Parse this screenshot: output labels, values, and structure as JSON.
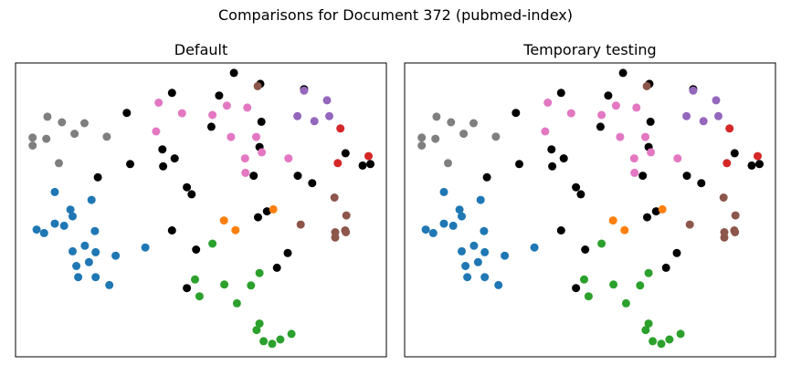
{
  "figure": {
    "title": "Comparisons for Document 372 (pubmed-index)"
  },
  "colors": {
    "black": "#000000",
    "gray": "#7f7f7f",
    "blue": "#1f77b4",
    "orange": "#ff7f0e",
    "green": "#2ca02c",
    "red": "#d62728",
    "purple": "#9467bd",
    "brown": "#8c564b",
    "pink": "#e377c2"
  },
  "chart_data": [
    {
      "type": "scatter",
      "title": "Default",
      "xlim": [
        0,
        100
      ],
      "ylim": [
        0,
        100
      ],
      "grid": false,
      "axes_ticks": false,
      "points": [
        {
          "x": 58.9,
          "y": 96.6,
          "c": "black"
        },
        {
          "x": 66.0,
          "y": 92.9,
          "c": "black"
        },
        {
          "x": 77.8,
          "y": 91.1,
          "c": "black"
        },
        {
          "x": 42.2,
          "y": 89.8,
          "c": "black"
        },
        {
          "x": 54.9,
          "y": 88.9,
          "c": "black"
        },
        {
          "x": 30.0,
          "y": 83.0,
          "c": "black"
        },
        {
          "x": 66.3,
          "y": 80.0,
          "c": "black"
        },
        {
          "x": 52.8,
          "y": 78.3,
          "c": "black"
        },
        {
          "x": 65.8,
          "y": 71.4,
          "c": "black"
        },
        {
          "x": 39.6,
          "y": 70.6,
          "c": "black"
        },
        {
          "x": 42.9,
          "y": 67.5,
          "c": "black"
        },
        {
          "x": 89.0,
          "y": 69.3,
          "c": "black"
        },
        {
          "x": 30.9,
          "y": 65.6,
          "c": "black"
        },
        {
          "x": 39.8,
          "y": 64.8,
          "c": "black"
        },
        {
          "x": 93.6,
          "y": 65.1,
          "c": "black"
        },
        {
          "x": 95.7,
          "y": 65.6,
          "c": "black"
        },
        {
          "x": 22.2,
          "y": 61.1,
          "c": "black"
        },
        {
          "x": 64.2,
          "y": 61.6,
          "c": "black"
        },
        {
          "x": 76.1,
          "y": 61.6,
          "c": "black"
        },
        {
          "x": 80.0,
          "y": 59.1,
          "c": "black"
        },
        {
          "x": 46.2,
          "y": 57.7,
          "c": "black"
        },
        {
          "x": 47.5,
          "y": 55.3,
          "c": "black"
        },
        {
          "x": 67.8,
          "y": 49.5,
          "c": "black"
        },
        {
          "x": 65.4,
          "y": 47.5,
          "c": "black"
        },
        {
          "x": 42.2,
          "y": 43.0,
          "c": "black"
        },
        {
          "x": 48.7,
          "y": 36.5,
          "c": "black"
        },
        {
          "x": 73.4,
          "y": 35.3,
          "c": "black"
        },
        {
          "x": 70.5,
          "y": 30.3,
          "c": "black"
        },
        {
          "x": 46.2,
          "y": 23.4,
          "c": "black"
        },
        {
          "x": 4.6,
          "y": 74.6,
          "c": "gray"
        },
        {
          "x": 8.6,
          "y": 81.7,
          "c": "gray"
        },
        {
          "x": 12.5,
          "y": 79.8,
          "c": "gray"
        },
        {
          "x": 18.6,
          "y": 79.5,
          "c": "gray"
        },
        {
          "x": 15.9,
          "y": 75.9,
          "c": "gray"
        },
        {
          "x": 24.6,
          "y": 74.9,
          "c": "gray"
        },
        {
          "x": 4.6,
          "y": 71.9,
          "c": "gray"
        },
        {
          "x": 8.3,
          "y": 74.2,
          "c": "gray"
        },
        {
          "x": 11.7,
          "y": 65.9,
          "c": "gray"
        },
        {
          "x": 10.6,
          "y": 56.1,
          "c": "blue"
        },
        {
          "x": 20.5,
          "y": 53.4,
          "c": "blue"
        },
        {
          "x": 14.8,
          "y": 50.1,
          "c": "blue"
        },
        {
          "x": 15.4,
          "y": 47.8,
          "c": "blue"
        },
        {
          "x": 10.6,
          "y": 45.3,
          "c": "blue"
        },
        {
          "x": 13.1,
          "y": 44.6,
          "c": "blue"
        },
        {
          "x": 5.7,
          "y": 43.3,
          "c": "blue"
        },
        {
          "x": 7.7,
          "y": 42.1,
          "c": "blue"
        },
        {
          "x": 21.4,
          "y": 42.8,
          "c": "blue"
        },
        {
          "x": 18.7,
          "y": 37.8,
          "c": "blue"
        },
        {
          "x": 15.4,
          "y": 35.9,
          "c": "blue"
        },
        {
          "x": 21.6,
          "y": 35.6,
          "c": "blue"
        },
        {
          "x": 27.0,
          "y": 34.4,
          "c": "blue"
        },
        {
          "x": 19.8,
          "y": 32.2,
          "c": "blue"
        },
        {
          "x": 16.4,
          "y": 30.9,
          "c": "blue"
        },
        {
          "x": 16.9,
          "y": 27.1,
          "c": "blue"
        },
        {
          "x": 21.6,
          "y": 27.1,
          "c": "blue"
        },
        {
          "x": 25.3,
          "y": 24.4,
          "c": "blue"
        },
        {
          "x": 35.0,
          "y": 37.2,
          "c": "blue"
        },
        {
          "x": 56.2,
          "y": 46.4,
          "c": "orange"
        },
        {
          "x": 59.3,
          "y": 43.1,
          "c": "orange"
        },
        {
          "x": 69.5,
          "y": 50.2,
          "c": "orange"
        },
        {
          "x": 53.1,
          "y": 38.5,
          "c": "green"
        },
        {
          "x": 65.8,
          "y": 28.5,
          "c": "green"
        },
        {
          "x": 48.4,
          "y": 26.3,
          "c": "green"
        },
        {
          "x": 56.3,
          "y": 24.6,
          "c": "green"
        },
        {
          "x": 63.5,
          "y": 24.3,
          "c": "green"
        },
        {
          "x": 49.6,
          "y": 20.6,
          "c": "green"
        },
        {
          "x": 59.7,
          "y": 18.2,
          "c": "green"
        },
        {
          "x": 65.8,
          "y": 11.3,
          "c": "green"
        },
        {
          "x": 65.0,
          "y": 9.1,
          "c": "green"
        },
        {
          "x": 74.4,
          "y": 7.8,
          "c": "green"
        },
        {
          "x": 71.4,
          "y": 5.9,
          "c": "green"
        },
        {
          "x": 66.9,
          "y": 5.3,
          "c": "green"
        },
        {
          "x": 69.2,
          "y": 4.4,
          "c": "green"
        },
        {
          "x": 87.6,
          "y": 77.7,
          "c": "red"
        },
        {
          "x": 86.9,
          "y": 65.9,
          "c": "red"
        },
        {
          "x": 95.2,
          "y": 68.3,
          "c": "red"
        },
        {
          "x": 77.8,
          "y": 90.6,
          "c": "purple"
        },
        {
          "x": 84.0,
          "y": 87.3,
          "c": "purple"
        },
        {
          "x": 76.0,
          "y": 81.9,
          "c": "purple"
        },
        {
          "x": 80.6,
          "y": 80.2,
          "c": "purple"
        },
        {
          "x": 84.6,
          "y": 81.9,
          "c": "purple"
        },
        {
          "x": 65.3,
          "y": 92.1,
          "c": "brown"
        },
        {
          "x": 86.0,
          "y": 54.2,
          "c": "brown"
        },
        {
          "x": 89.2,
          "y": 48.1,
          "c": "brown"
        },
        {
          "x": 76.9,
          "y": 45.0,
          "c": "brown"
        },
        {
          "x": 86.2,
          "y": 42.4,
          "c": "brown"
        },
        {
          "x": 86.2,
          "y": 40.6,
          "c": "brown"
        },
        {
          "x": 88.9,
          "y": 43.0,
          "c": "brown"
        },
        {
          "x": 89.1,
          "y": 42.4,
          "c": "brown"
        },
        {
          "x": 38.6,
          "y": 86.5,
          "c": "pink"
        },
        {
          "x": 44.9,
          "y": 82.9,
          "c": "pink"
        },
        {
          "x": 57.0,
          "y": 85.5,
          "c": "pink"
        },
        {
          "x": 62.5,
          "y": 84.8,
          "c": "pink"
        },
        {
          "x": 53.1,
          "y": 82.3,
          "c": "pink"
        },
        {
          "x": 37.9,
          "y": 76.7,
          "c": "pink"
        },
        {
          "x": 58.1,
          "y": 74.8,
          "c": "pink"
        },
        {
          "x": 64.9,
          "y": 74.8,
          "c": "pink"
        },
        {
          "x": 66.4,
          "y": 69.6,
          "c": "pink"
        },
        {
          "x": 61.9,
          "y": 67.5,
          "c": "pink"
        },
        {
          "x": 73.6,
          "y": 67.5,
          "c": "pink"
        },
        {
          "x": 62.0,
          "y": 62.6,
          "c": "pink"
        }
      ]
    },
    {
      "type": "scatter",
      "title": "Temporary testing",
      "xlim": [
        0,
        100
      ],
      "ylim": [
        0,
        100
      ],
      "grid": false,
      "axes_ticks": false,
      "points": [
        {
          "x": 58.9,
          "y": 96.6,
          "c": "black"
        },
        {
          "x": 66.0,
          "y": 92.9,
          "c": "black"
        },
        {
          "x": 77.8,
          "y": 91.1,
          "c": "black"
        },
        {
          "x": 42.2,
          "y": 89.8,
          "c": "black"
        },
        {
          "x": 54.9,
          "y": 88.9,
          "c": "black"
        },
        {
          "x": 30.0,
          "y": 83.0,
          "c": "black"
        },
        {
          "x": 66.3,
          "y": 80.0,
          "c": "black"
        },
        {
          "x": 52.8,
          "y": 78.3,
          "c": "black"
        },
        {
          "x": 65.8,
          "y": 71.4,
          "c": "black"
        },
        {
          "x": 39.6,
          "y": 70.6,
          "c": "black"
        },
        {
          "x": 42.9,
          "y": 67.5,
          "c": "black"
        },
        {
          "x": 89.0,
          "y": 69.3,
          "c": "black"
        },
        {
          "x": 30.9,
          "y": 65.6,
          "c": "black"
        },
        {
          "x": 39.8,
          "y": 64.8,
          "c": "black"
        },
        {
          "x": 93.6,
          "y": 65.1,
          "c": "black"
        },
        {
          "x": 95.7,
          "y": 65.6,
          "c": "black"
        },
        {
          "x": 22.2,
          "y": 61.1,
          "c": "black"
        },
        {
          "x": 64.2,
          "y": 61.6,
          "c": "black"
        },
        {
          "x": 76.1,
          "y": 61.6,
          "c": "black"
        },
        {
          "x": 80.0,
          "y": 59.1,
          "c": "black"
        },
        {
          "x": 46.2,
          "y": 57.7,
          "c": "black"
        },
        {
          "x": 47.5,
          "y": 55.3,
          "c": "black"
        },
        {
          "x": 67.8,
          "y": 49.5,
          "c": "black"
        },
        {
          "x": 65.4,
          "y": 47.5,
          "c": "black"
        },
        {
          "x": 42.2,
          "y": 43.0,
          "c": "black"
        },
        {
          "x": 48.7,
          "y": 36.5,
          "c": "black"
        },
        {
          "x": 73.4,
          "y": 35.3,
          "c": "black"
        },
        {
          "x": 70.5,
          "y": 30.3,
          "c": "black"
        },
        {
          "x": 46.2,
          "y": 23.4,
          "c": "black"
        },
        {
          "x": 4.6,
          "y": 74.6,
          "c": "gray"
        },
        {
          "x": 8.6,
          "y": 81.7,
          "c": "gray"
        },
        {
          "x": 12.5,
          "y": 79.8,
          "c": "gray"
        },
        {
          "x": 18.6,
          "y": 79.5,
          "c": "gray"
        },
        {
          "x": 15.9,
          "y": 75.9,
          "c": "gray"
        },
        {
          "x": 24.6,
          "y": 74.9,
          "c": "gray"
        },
        {
          "x": 4.6,
          "y": 71.9,
          "c": "gray"
        },
        {
          "x": 8.3,
          "y": 74.2,
          "c": "gray"
        },
        {
          "x": 11.7,
          "y": 65.9,
          "c": "gray"
        },
        {
          "x": 10.6,
          "y": 56.1,
          "c": "blue"
        },
        {
          "x": 20.5,
          "y": 53.4,
          "c": "blue"
        },
        {
          "x": 14.8,
          "y": 50.1,
          "c": "blue"
        },
        {
          "x": 15.4,
          "y": 47.8,
          "c": "blue"
        },
        {
          "x": 10.6,
          "y": 45.3,
          "c": "blue"
        },
        {
          "x": 13.1,
          "y": 44.6,
          "c": "blue"
        },
        {
          "x": 5.7,
          "y": 43.3,
          "c": "blue"
        },
        {
          "x": 7.7,
          "y": 42.1,
          "c": "blue"
        },
        {
          "x": 21.4,
          "y": 42.8,
          "c": "blue"
        },
        {
          "x": 18.7,
          "y": 37.8,
          "c": "blue"
        },
        {
          "x": 15.4,
          "y": 35.9,
          "c": "blue"
        },
        {
          "x": 21.6,
          "y": 35.6,
          "c": "blue"
        },
        {
          "x": 27.0,
          "y": 34.4,
          "c": "blue"
        },
        {
          "x": 19.8,
          "y": 32.2,
          "c": "blue"
        },
        {
          "x": 16.4,
          "y": 30.9,
          "c": "blue"
        },
        {
          "x": 16.9,
          "y": 27.1,
          "c": "blue"
        },
        {
          "x": 21.6,
          "y": 27.1,
          "c": "blue"
        },
        {
          "x": 25.3,
          "y": 24.4,
          "c": "blue"
        },
        {
          "x": 35.0,
          "y": 37.2,
          "c": "blue"
        },
        {
          "x": 56.2,
          "y": 46.4,
          "c": "orange"
        },
        {
          "x": 59.3,
          "y": 43.1,
          "c": "orange"
        },
        {
          "x": 69.5,
          "y": 50.2,
          "c": "orange"
        },
        {
          "x": 53.1,
          "y": 38.5,
          "c": "green"
        },
        {
          "x": 65.8,
          "y": 28.5,
          "c": "green"
        },
        {
          "x": 48.4,
          "y": 26.3,
          "c": "green"
        },
        {
          "x": 56.3,
          "y": 24.6,
          "c": "green"
        },
        {
          "x": 63.5,
          "y": 24.3,
          "c": "green"
        },
        {
          "x": 49.6,
          "y": 20.6,
          "c": "green"
        },
        {
          "x": 59.7,
          "y": 18.2,
          "c": "green"
        },
        {
          "x": 65.8,
          "y": 11.3,
          "c": "green"
        },
        {
          "x": 65.0,
          "y": 9.1,
          "c": "green"
        },
        {
          "x": 74.4,
          "y": 7.8,
          "c": "green"
        },
        {
          "x": 71.4,
          "y": 5.9,
          "c": "green"
        },
        {
          "x": 66.9,
          "y": 5.3,
          "c": "green"
        },
        {
          "x": 69.2,
          "y": 4.4,
          "c": "green"
        },
        {
          "x": 87.6,
          "y": 77.7,
          "c": "red"
        },
        {
          "x": 86.9,
          "y": 65.9,
          "c": "red"
        },
        {
          "x": 95.2,
          "y": 68.3,
          "c": "red"
        },
        {
          "x": 77.8,
          "y": 90.6,
          "c": "purple"
        },
        {
          "x": 84.0,
          "y": 87.3,
          "c": "purple"
        },
        {
          "x": 76.0,
          "y": 81.9,
          "c": "purple"
        },
        {
          "x": 80.6,
          "y": 80.2,
          "c": "purple"
        },
        {
          "x": 84.6,
          "y": 81.9,
          "c": "purple"
        },
        {
          "x": 65.3,
          "y": 92.1,
          "c": "brown"
        },
        {
          "x": 86.0,
          "y": 54.2,
          "c": "brown"
        },
        {
          "x": 89.2,
          "y": 48.1,
          "c": "brown"
        },
        {
          "x": 76.9,
          "y": 45.0,
          "c": "brown"
        },
        {
          "x": 86.2,
          "y": 42.4,
          "c": "brown"
        },
        {
          "x": 86.2,
          "y": 40.6,
          "c": "brown"
        },
        {
          "x": 88.9,
          "y": 43.0,
          "c": "brown"
        },
        {
          "x": 89.1,
          "y": 42.4,
          "c": "brown"
        },
        {
          "x": 38.6,
          "y": 86.5,
          "c": "pink"
        },
        {
          "x": 44.9,
          "y": 82.9,
          "c": "pink"
        },
        {
          "x": 57.0,
          "y": 85.5,
          "c": "pink"
        },
        {
          "x": 62.5,
          "y": 84.8,
          "c": "pink"
        },
        {
          "x": 53.1,
          "y": 82.3,
          "c": "pink"
        },
        {
          "x": 37.9,
          "y": 76.7,
          "c": "pink"
        },
        {
          "x": 58.1,
          "y": 74.8,
          "c": "pink"
        },
        {
          "x": 64.9,
          "y": 74.8,
          "c": "pink"
        },
        {
          "x": 66.4,
          "y": 69.6,
          "c": "pink"
        },
        {
          "x": 61.9,
          "y": 67.5,
          "c": "pink"
        },
        {
          "x": 73.6,
          "y": 67.5,
          "c": "pink"
        },
        {
          "x": 62.0,
          "y": 62.6,
          "c": "pink"
        }
      ]
    }
  ]
}
